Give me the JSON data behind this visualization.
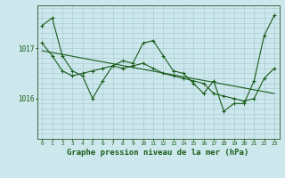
{
  "background_color": "#cce8ec",
  "grid_color": "#aaccd4",
  "line_color": "#1a5c1a",
  "title": "Graphe pression niveau de la mer (hPa)",
  "xlim": [
    -0.5,
    23.5
  ],
  "ylim": [
    1015.2,
    1017.85
  ],
  "yticks": [
    1016,
    1017
  ],
  "xticks": [
    0,
    1,
    2,
    3,
    4,
    5,
    6,
    7,
    8,
    9,
    10,
    11,
    12,
    13,
    14,
    15,
    16,
    17,
    18,
    19,
    20,
    21,
    22,
    23
  ],
  "series1_x": [
    0,
    1,
    2,
    3,
    4,
    5,
    6,
    7,
    8,
    9,
    10,
    11,
    12,
    13,
    14,
    15,
    16,
    17,
    18,
    19,
    20,
    21,
    22,
    23
  ],
  "series1_y": [
    1017.45,
    1017.6,
    1016.85,
    1016.55,
    1016.45,
    1016.0,
    1016.35,
    1016.65,
    1016.75,
    1016.7,
    1017.1,
    1017.15,
    1016.85,
    1016.55,
    1016.5,
    1016.3,
    1016.1,
    1016.35,
    1015.75,
    1015.9,
    1015.9,
    1016.35,
    1017.25,
    1017.65
  ],
  "series2_x": [
    0,
    1,
    2,
    3,
    4,
    5,
    6,
    7,
    8,
    9,
    10,
    11,
    12,
    13,
    14,
    15,
    16,
    17,
    18,
    19,
    20,
    21,
    22,
    23
  ],
  "series2_y": [
    1017.1,
    1016.85,
    1016.55,
    1016.45,
    1016.5,
    1016.55,
    1016.6,
    1016.65,
    1016.6,
    1016.65,
    1016.7,
    1016.6,
    1016.5,
    1016.45,
    1016.4,
    1016.35,
    1016.3,
    1016.1,
    1016.05,
    1016.0,
    1015.95,
    1016.0,
    1016.4,
    1016.6
  ],
  "trend_x": [
    0,
    23
  ],
  "trend_y": [
    1016.95,
    1016.1
  ]
}
